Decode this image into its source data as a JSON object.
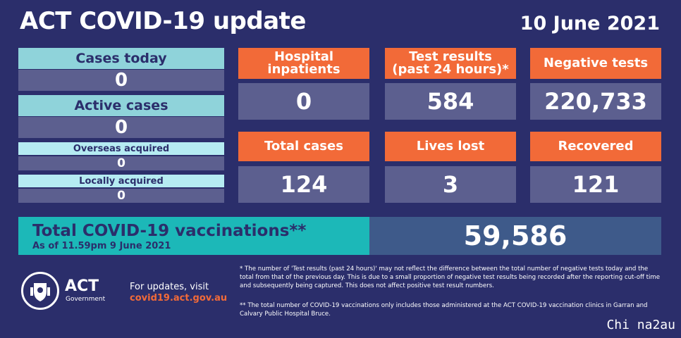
{
  "header": {
    "title": "ACT COVID-19 update",
    "date": "10 June 2021"
  },
  "left_panel": {
    "cases_today": {
      "label": "Cases today",
      "value": "0"
    },
    "active_cases": {
      "label": "Active cases",
      "value": "0"
    },
    "overseas_acquired": {
      "label": "Overseas acquired",
      "value": "0"
    },
    "locally_acquired": {
      "label": "Locally acquired",
      "value": "0"
    }
  },
  "tiles": {
    "hospital_inpatients": {
      "label_line1": "Hospital",
      "label_line2": "inpatients",
      "value": "0"
    },
    "test_results": {
      "label_line1": "Test results",
      "label_line2": "(past 24 hours)*",
      "value": "584"
    },
    "negative_tests": {
      "label": "Negative tests",
      "value": "220,733"
    },
    "total_cases": {
      "label": "Total cases",
      "value": "124"
    },
    "lives_lost": {
      "label": "Lives lost",
      "value": "3"
    },
    "recovered": {
      "label": "Recovered",
      "value": "121"
    }
  },
  "vaccinations": {
    "title": "Total COVID-19 vaccinations**",
    "subtitle": "As of 11.59pm 9 June 2021",
    "value": "59,586"
  },
  "footer": {
    "logo_text": "ACT",
    "logo_subtext": "Government",
    "updates_text": "For updates, visit",
    "updates_url": "covid19.act.gov.au",
    "note1": "* The number of 'Test results (past 24 hours)' may not reflect the difference between the total number of negative tests today and the total from that of the previous day. This is due to a small proportion of negative test results being recorded after the reporting cut-off time and subsequently being captured. This does not affect positive test result numbers.",
    "note2": "** The total number of COVID-19 vaccinations only includes those administered at the ACT COVID-19 vaccination clinics in Garran and Calvary Public Hospital Bruce."
  },
  "watermark": "Chi na2au",
  "colors": {
    "background": "#2b2e6b",
    "orange": "#f26a38",
    "teal": "#8fd3da",
    "vax_teal": "#1cb8b8"
  },
  "icons": {
    "logo": "act-crest-icon"
  }
}
